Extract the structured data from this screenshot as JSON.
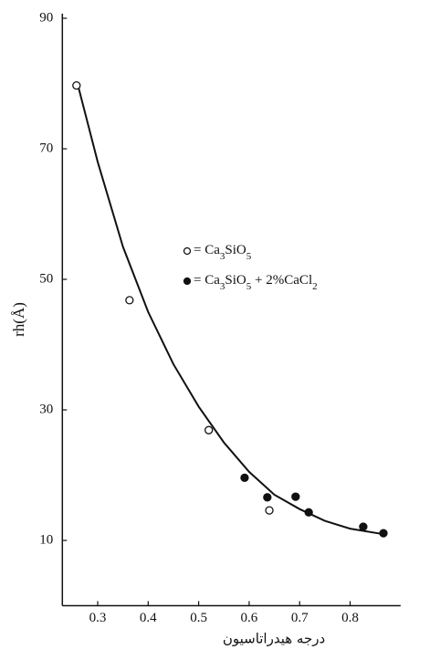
{
  "chart_data": {
    "type": "scatter",
    "x_label": "درجه هیدراتاسیون",
    "y_label": "rh(Å)",
    "xlim": [
      0.23,
      0.9
    ],
    "ylim": [
      0,
      90
    ],
    "xticks": [
      0.3,
      0.4,
      0.5,
      0.6,
      0.7,
      0.8
    ],
    "yticks": [
      10,
      30,
      50,
      70,
      90
    ],
    "series": [
      {
        "name": "= Ca3SiO5",
        "marker": "open",
        "color": "#111111",
        "x": [
          0.258,
          0.363,
          0.52,
          0.64
        ],
        "values": [
          79.7,
          46.8,
          26.9,
          14.6
        ]
      },
      {
        "name": "= Ca3SiO5 + 2%CaCl2",
        "marker": "filled",
        "color": "#111111",
        "x": [
          0.591,
          0.636,
          0.692,
          0.718,
          0.826,
          0.866
        ],
        "values": [
          19.6,
          16.6,
          16.7,
          14.3,
          12.1,
          11.1
        ]
      }
    ],
    "curve": {
      "color": "#111111",
      "x": [
        0.26,
        0.3,
        0.35,
        0.4,
        0.45,
        0.5,
        0.55,
        0.6,
        0.65,
        0.7,
        0.75,
        0.8,
        0.87
      ],
      "values": [
        80,
        68,
        55,
        45,
        37,
        30.5,
        25,
        20.5,
        17,
        14.8,
        13,
        11.8,
        10.9
      ]
    }
  }
}
